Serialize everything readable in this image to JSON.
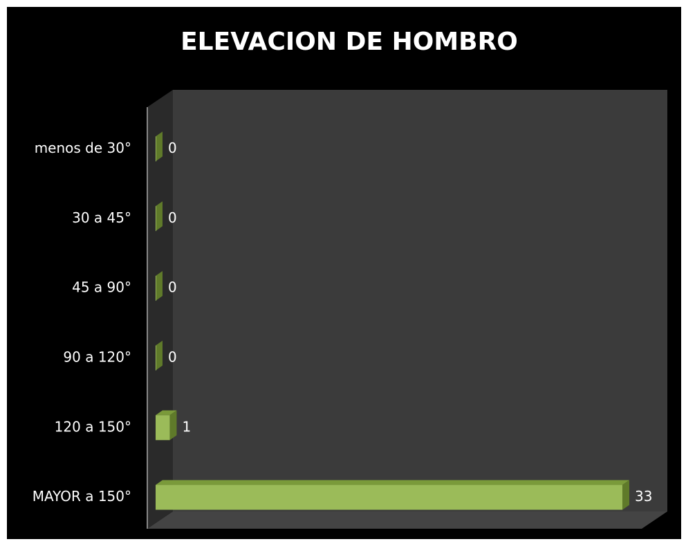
{
  "chart_data": {
    "type": "bar",
    "orientation": "horizontal",
    "title": "ELEVACION DE HOMBRO",
    "categories": [
      "menos de 30°",
      "30 a 45°",
      "45 a 90°",
      "90 a 120°",
      "120 a 150°",
      "MAYOR a 150°"
    ],
    "values": [
      0,
      0,
      0,
      0,
      1,
      33
    ],
    "color": "#9bbb59"
  }
}
